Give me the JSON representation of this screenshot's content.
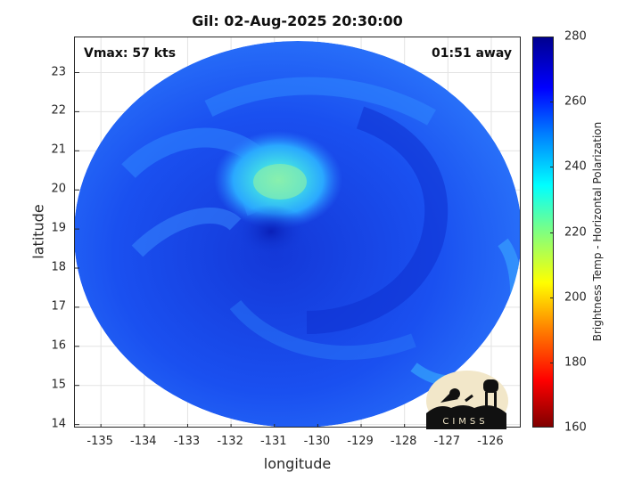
{
  "figure": {
    "title": "Gil: 02-Aug-2025 20:30:00",
    "vmax_label": "Vmax: 57 kts",
    "away_label": "01:51 away",
    "xlabel": "longitude",
    "ylabel": "latitude",
    "logo_text": "CIMSS"
  },
  "axes": {
    "x_range": [
      -135.6,
      -125.3
    ],
    "y_range": [
      13.9,
      23.9
    ],
    "x_ticks": [
      "-135",
      "-134",
      "-133",
      "-132",
      "-131",
      "-130",
      "-129",
      "-128",
      "-127",
      "-126"
    ],
    "y_ticks": [
      "14",
      "15",
      "16",
      "17",
      "18",
      "19",
      "20",
      "21",
      "22",
      "23"
    ],
    "grid": true
  },
  "colorbar": {
    "label": "Brightness Temp - Horizontal Polarization",
    "range": [
      160,
      280
    ],
    "ticks": [
      "160",
      "180",
      "200",
      "220",
      "240",
      "260",
      "280"
    ],
    "colormap": "jet"
  },
  "storm": {
    "center_lon": -130.8,
    "center_lat": 19.1,
    "background_color": "#1a4ff0",
    "swath_edge_color": "#2f7cf8",
    "warm_core_color": "#5ee8c8",
    "cold_band_color": "#0f2fd8"
  }
}
